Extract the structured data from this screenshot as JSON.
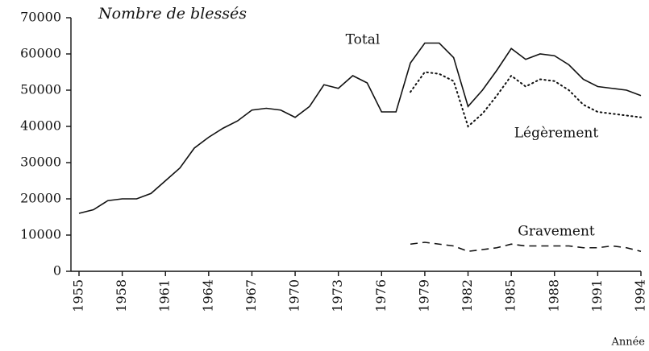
{
  "chart_data": {
    "type": "line",
    "title": "Nombre de blessés",
    "x_label": "Année",
    "x": [
      1955,
      1956,
      1957,
      1958,
      1959,
      1960,
      1961,
      1962,
      1963,
      1964,
      1965,
      1966,
      1967,
      1968,
      1969,
      1970,
      1971,
      1972,
      1973,
      1974,
      1975,
      1976,
      1977,
      1978,
      1979,
      1980,
      1981,
      1982,
      1983,
      1984,
      1985,
      1986,
      1987,
      1988,
      1989,
      1990,
      1991,
      1992,
      1993,
      1994
    ],
    "series": [
      {
        "name": "Total",
        "color": "#111111",
        "dash": "solid",
        "values": [
          16000,
          17000,
          19500,
          20000,
          20000,
          21500,
          25000,
          28500,
          34000,
          37000,
          39500,
          41500,
          44500,
          45000,
          44500,
          42500,
          45500,
          51500,
          50500,
          54000,
          52000,
          44000,
          44000,
          57500,
          63000,
          63000,
          59000,
          45500,
          50000,
          55500,
          61500,
          58500,
          60000,
          59500,
          57000,
          53000,
          51000,
          50500,
          50000,
          48500
        ]
      },
      {
        "name": "Légèrement",
        "color": "#111111",
        "dash": "dotted",
        "values": [
          null,
          null,
          null,
          null,
          null,
          null,
          null,
          null,
          null,
          null,
          null,
          null,
          null,
          null,
          null,
          null,
          null,
          null,
          null,
          null,
          null,
          null,
          null,
          49500,
          55000,
          54500,
          52500,
          40000,
          43500,
          48500,
          54000,
          51000,
          53000,
          52500,
          50000,
          46000,
          44000,
          43500,
          43000,
          42500
        ]
      },
      {
        "name": "Gravement",
        "color": "#111111",
        "dash": "dashed",
        "values": [
          null,
          null,
          null,
          null,
          null,
          null,
          null,
          null,
          null,
          null,
          null,
          null,
          null,
          null,
          null,
          null,
          null,
          null,
          null,
          null,
          null,
          null,
          null,
          7500,
          8000,
          7500,
          7000,
          5500,
          6000,
          6500,
          7500,
          7000,
          7000,
          7000,
          7000,
          6500,
          6500,
          7000,
          6500,
          5500
        ]
      }
    ],
    "xlim": [
      1955,
      1994
    ],
    "xticks": [
      1955,
      1958,
      1961,
      1964,
      1967,
      1970,
      1973,
      1976,
      1979,
      1982,
      1985,
      1988,
      1991,
      1994
    ],
    "ylim": [
      0,
      70000
    ],
    "yticks": [
      0,
      10000,
      20000,
      30000,
      40000,
      50000,
      60000,
      70000
    ],
    "grid": false
  }
}
